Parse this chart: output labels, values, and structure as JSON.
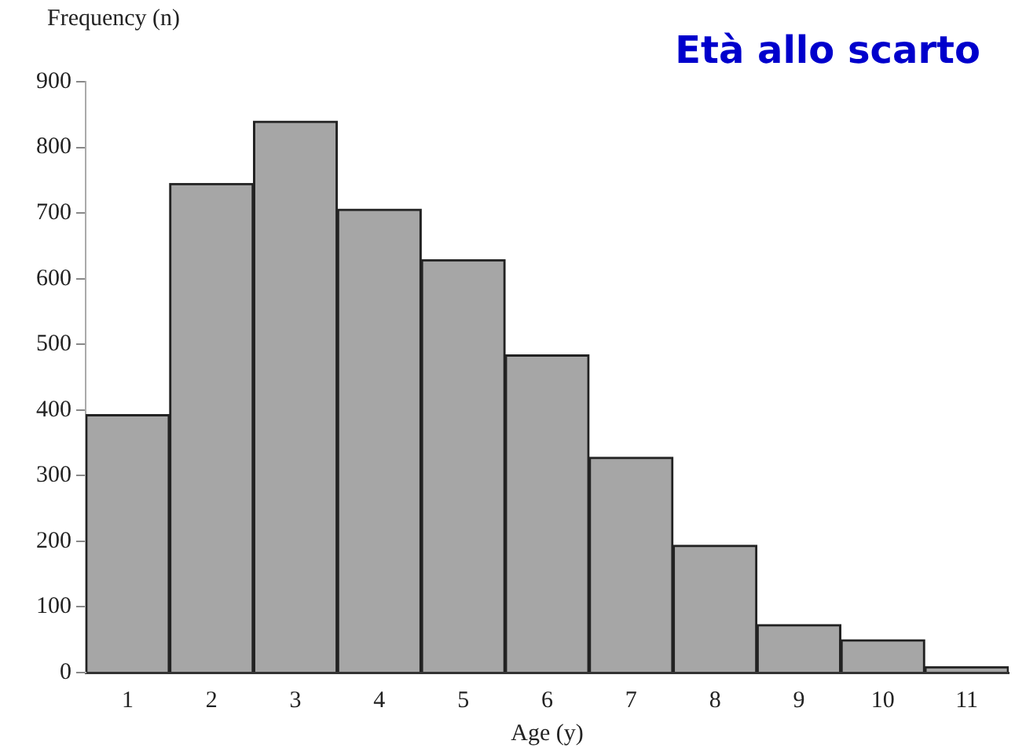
{
  "chart_data": {
    "type": "bar",
    "title": "Età allo scarto",
    "xlabel": "Age (y)",
    "ylabel": "Frequency (n)",
    "categories": [
      "1",
      "2",
      "3",
      "4",
      "5",
      "6",
      "7",
      "8",
      "9",
      "10",
      "11"
    ],
    "values": [
      393,
      745,
      840,
      706,
      629,
      484,
      328,
      194,
      73,
      50,
      9
    ],
    "color": "#a6a6a6",
    "ylim": [
      0,
      900
    ],
    "yticks": [
      0,
      100,
      200,
      300,
      400,
      500,
      600,
      700,
      800,
      900
    ],
    "grid": false,
    "legend": false
  }
}
